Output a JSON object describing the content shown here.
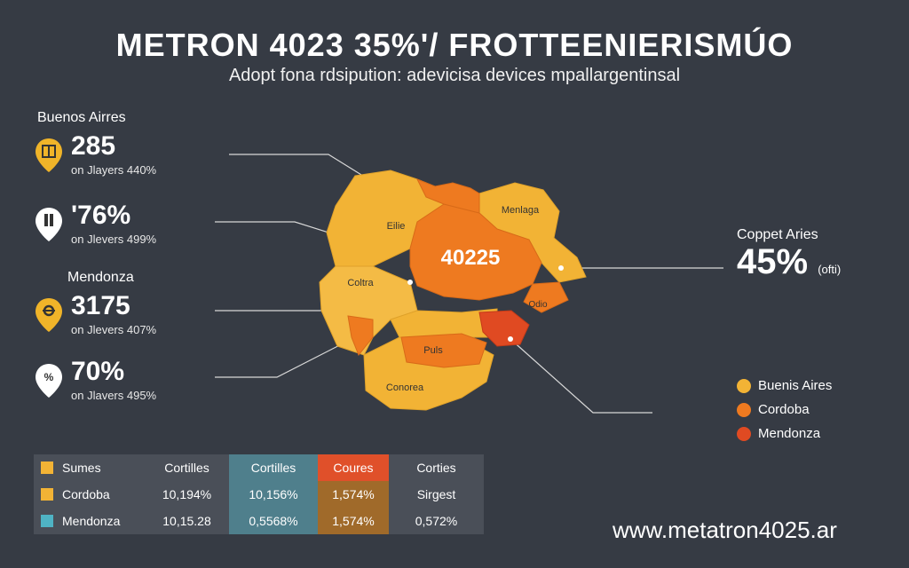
{
  "title": "METRON 4023 35%'/ FROTTEENIERISMÚO",
  "subtitle": "Adopt fona rdsipution: adevicisa devices mpallargentinsal",
  "left_stats": [
    {
      "heading": "Buenos Airres",
      "value": "285",
      "sub": "on Jlayers 440%",
      "icon": "map-pin-book-icon",
      "pin_color": "#f0b429"
    },
    {
      "heading": "",
      "value": "'76%",
      "sub": "on Jlevers 499%",
      "icon": "map-pin-bottle-icon",
      "pin_color": "#ffffff"
    },
    {
      "heading": "Mendonza",
      "value": "3175",
      "sub": "on Jlevers 407%",
      "icon": "map-pin-gear-icon",
      "pin_color": "#f0b429"
    },
    {
      "heading": "",
      "value": "70%",
      "sub": "on Jlavers 495%",
      "icon": "map-pin-percent-icon",
      "pin_color": "#ffffff"
    }
  ],
  "map": {
    "center_label": "40225",
    "labels": {
      "ellie": "Eilie",
      "coltra": "Coltra",
      "menlaga": "Menlaga",
      "pula": "Puls",
      "conorea": "Conorea",
      "odio": "Odio"
    }
  },
  "right_callout": {
    "label": "Coppet Aries",
    "value": "45%",
    "suffix": "(ofti)"
  },
  "legend": [
    {
      "label": "Buenis Aires",
      "color": "#f2b335"
    },
    {
      "label": "Cordoba",
      "color": "#ee7a20"
    },
    {
      "label": "Mendonza",
      "color": "#e04a22"
    }
  ],
  "table": {
    "header": [
      "Sumes",
      "Cortilles",
      "Cortilles",
      "Coures",
      "Corties"
    ],
    "rows": [
      {
        "name": "Cordoba",
        "cells": [
          "10,194%",
          "10,156%",
          "1,574%",
          "Sirgest"
        ],
        "color": "#f2b335"
      },
      {
        "name": "Mendonza",
        "cells": [
          "10,15.28",
          "0,5568%",
          "1,574%",
          "0,572%"
        ],
        "color": "#4fb3c4"
      }
    ],
    "colors": {
      "header_sq": "#f2b335",
      "coures_header": "#e0502a",
      "coures_body": "#a06a2a"
    }
  },
  "website": "www.metatron4025.ar",
  "colors": {
    "background": "#363b44",
    "map_yellow": "#f2b335",
    "map_orange": "#ee7a20",
    "map_red": "#e04a22"
  }
}
